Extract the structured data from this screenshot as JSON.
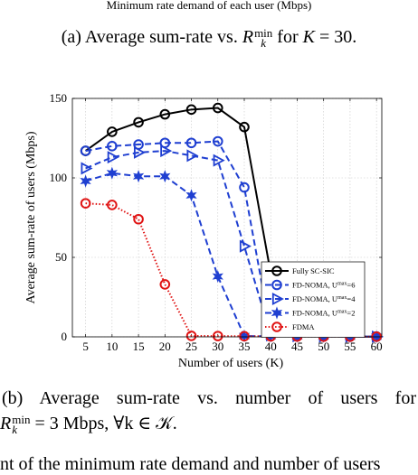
{
  "top_text": "Minimum rate demand of each user (Mbps)",
  "caption_a": {
    "prefix": "(a)  Average sum-rate vs. ",
    "var": "R",
    "var_sub": "k",
    "var_sup": "min",
    "middle": " for ",
    "k_var": "K",
    "suffix": " = 30."
  },
  "caption_b": {
    "line1": "(b)  Average  sum-rate  vs.  number  of  users  for",
    "var": "R",
    "var_sub": "k",
    "var_sup": "min",
    "line2_suffix": " = 3 Mbps, ∀k ∈ 𝒦."
  },
  "bottom_fragment": "nt of the minimum rate demand and number of users",
  "chart_data": {
    "type": "line",
    "xlabel": "Number of users (K)",
    "ylabel": "Average sum-rate of users (Mbps)",
    "x": [
      5,
      10,
      15,
      20,
      25,
      30,
      35,
      40,
      45,
      50,
      55,
      60
    ],
    "xlim": [
      2.5,
      61
    ],
    "ylim": [
      0,
      150
    ],
    "xticks": [
      5,
      10,
      15,
      20,
      25,
      30,
      35,
      40,
      45,
      50,
      55,
      60
    ],
    "yticks": [
      0,
      50,
      100,
      150
    ],
    "grid": true,
    "legend_position": "lower-right",
    "series": [
      {
        "name": "Fully SC-SIC",
        "color": "#000000",
        "dash": "solid",
        "marker": "circle",
        "values": [
          117,
          129,
          135,
          140,
          143,
          144,
          132,
          40,
          0.5,
          0.3,
          0.2,
          0.1
        ]
      },
      {
        "name": "FD-NOMA, U",
        "name_sup": "max",
        "name_suffix": "=6",
        "color": "#1f3fd1",
        "dash": "dashed",
        "marker": "circle",
        "values": [
          117,
          120,
          121,
          122,
          122,
          123,
          94,
          3,
          0.5,
          0.3,
          0.2,
          0.1
        ]
      },
      {
        "name": "FD-NOMA, U",
        "name_sup": "max",
        "name_suffix": "=4",
        "color": "#1f3fd1",
        "dash": "dashed",
        "marker": "triangle",
        "values": [
          106,
          113,
          116,
          117,
          114,
          111,
          57,
          1,
          0.5,
          0.3,
          0.2,
          0.1
        ]
      },
      {
        "name": "FD-NOMA, U",
        "name_sup": "max",
        "name_suffix": "=2",
        "color": "#1f3fd1",
        "dash": "dashed",
        "marker": "star",
        "values": [
          98,
          103,
          101,
          101,
          89,
          38,
          0.5,
          0.4,
          0.3,
          0.2,
          0.1,
          0.1
        ]
      },
      {
        "name": "FDMA",
        "color": "#e01414",
        "dash": "dotted",
        "marker": "circle",
        "values": [
          84,
          83,
          74,
          33,
          0.6,
          0.5,
          0.4,
          0.3,
          0.2,
          0.1,
          0.1,
          0.1
        ]
      }
    ]
  }
}
